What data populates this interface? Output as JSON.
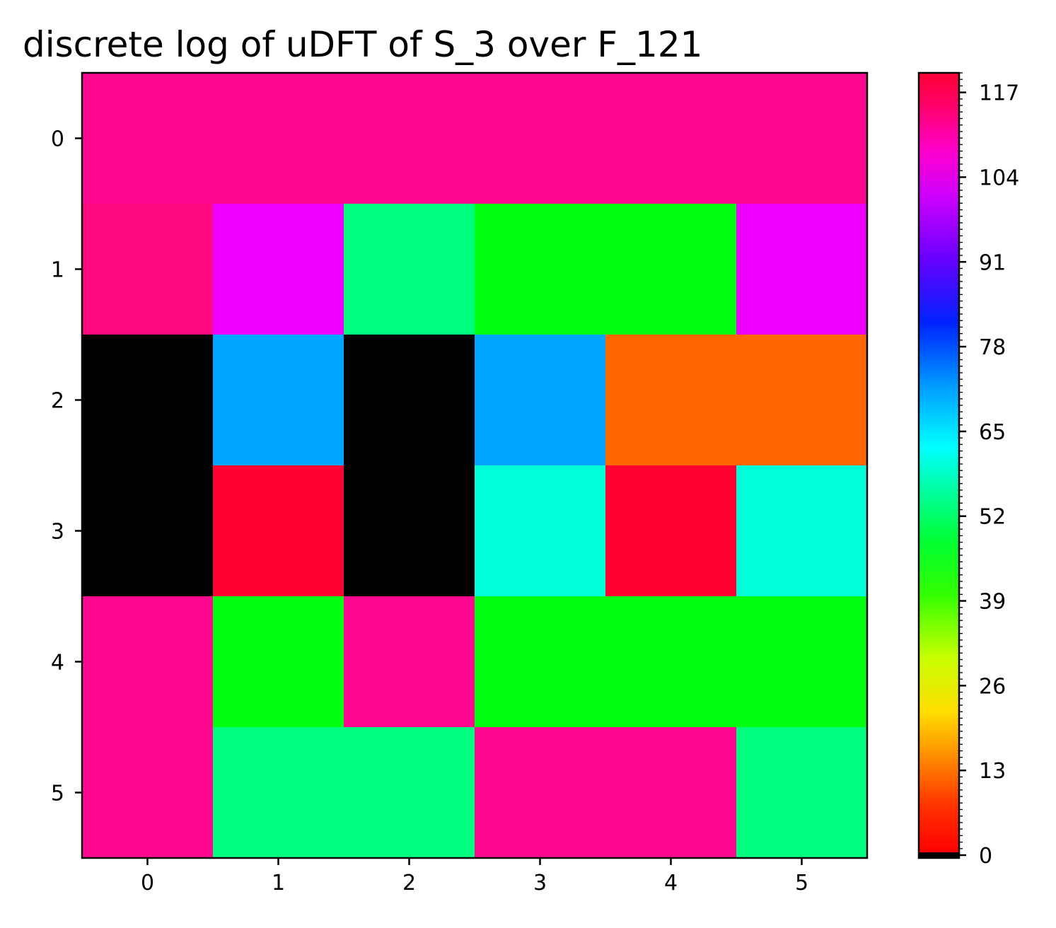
{
  "chart_data": {
    "type": "heatmap",
    "title": "discrete log of uDFT of S_3 over F_121",
    "xlabel": "",
    "ylabel": "",
    "x_ticks": [
      "0",
      "1",
      "2",
      "3",
      "4",
      "5"
    ],
    "y_ticks": [
      "0",
      "1",
      "2",
      "3",
      "4",
      "5"
    ],
    "colormap": "gist_rainbow_r with black for undefined (zero entries)",
    "value_range": [
      0,
      120
    ],
    "colorbar_ticks": [
      "0",
      "13",
      "26",
      "39",
      "52",
      "65",
      "78",
      "91",
      "104",
      "117"
    ],
    "colorbar_tick_values": [
      0,
      13,
      26,
      39,
      52,
      65,
      78,
      91,
      104,
      117
    ],
    "undefined_color": "#000000",
    "matrix": [
      [
        110,
        110,
        110,
        110,
        110,
        110
      ],
      [
        112,
        100,
        50,
        40,
        40,
        100
      ],
      [
        null,
        67,
        null,
        67,
        8,
        8
      ],
      [
        null,
        118,
        null,
        57,
        118,
        57
      ],
      [
        110,
        40,
        110,
        40,
        40,
        40
      ],
      [
        110,
        50,
        50,
        110,
        110,
        50
      ]
    ],
    "cell_colors": [
      [
        "#ff0890",
        "#ff0890",
        "#ff0890",
        "#ff0890",
        "#ff0890",
        "#ff0890"
      ],
      [
        "#ff0a80",
        "#ee00ff",
        "#00ff7f",
        "#00ff10",
        "#00ff10",
        "#ee00ff"
      ],
      [
        "#000000",
        "#00a5ff",
        "#000000",
        "#00a5ff",
        "#ff6600",
        "#ff6600"
      ],
      [
        "#000000",
        "#ff0033",
        "#000000",
        "#00ffd9",
        "#ff0033",
        "#00ffd9"
      ],
      [
        "#ff0890",
        "#00ff10",
        "#ff0890",
        "#00ff10",
        "#00ff10",
        "#00ff10"
      ],
      [
        "#ff0890",
        "#00ff7f",
        "#00ff7f",
        "#ff0890",
        "#ff0890",
        "#00ff7f"
      ]
    ]
  }
}
